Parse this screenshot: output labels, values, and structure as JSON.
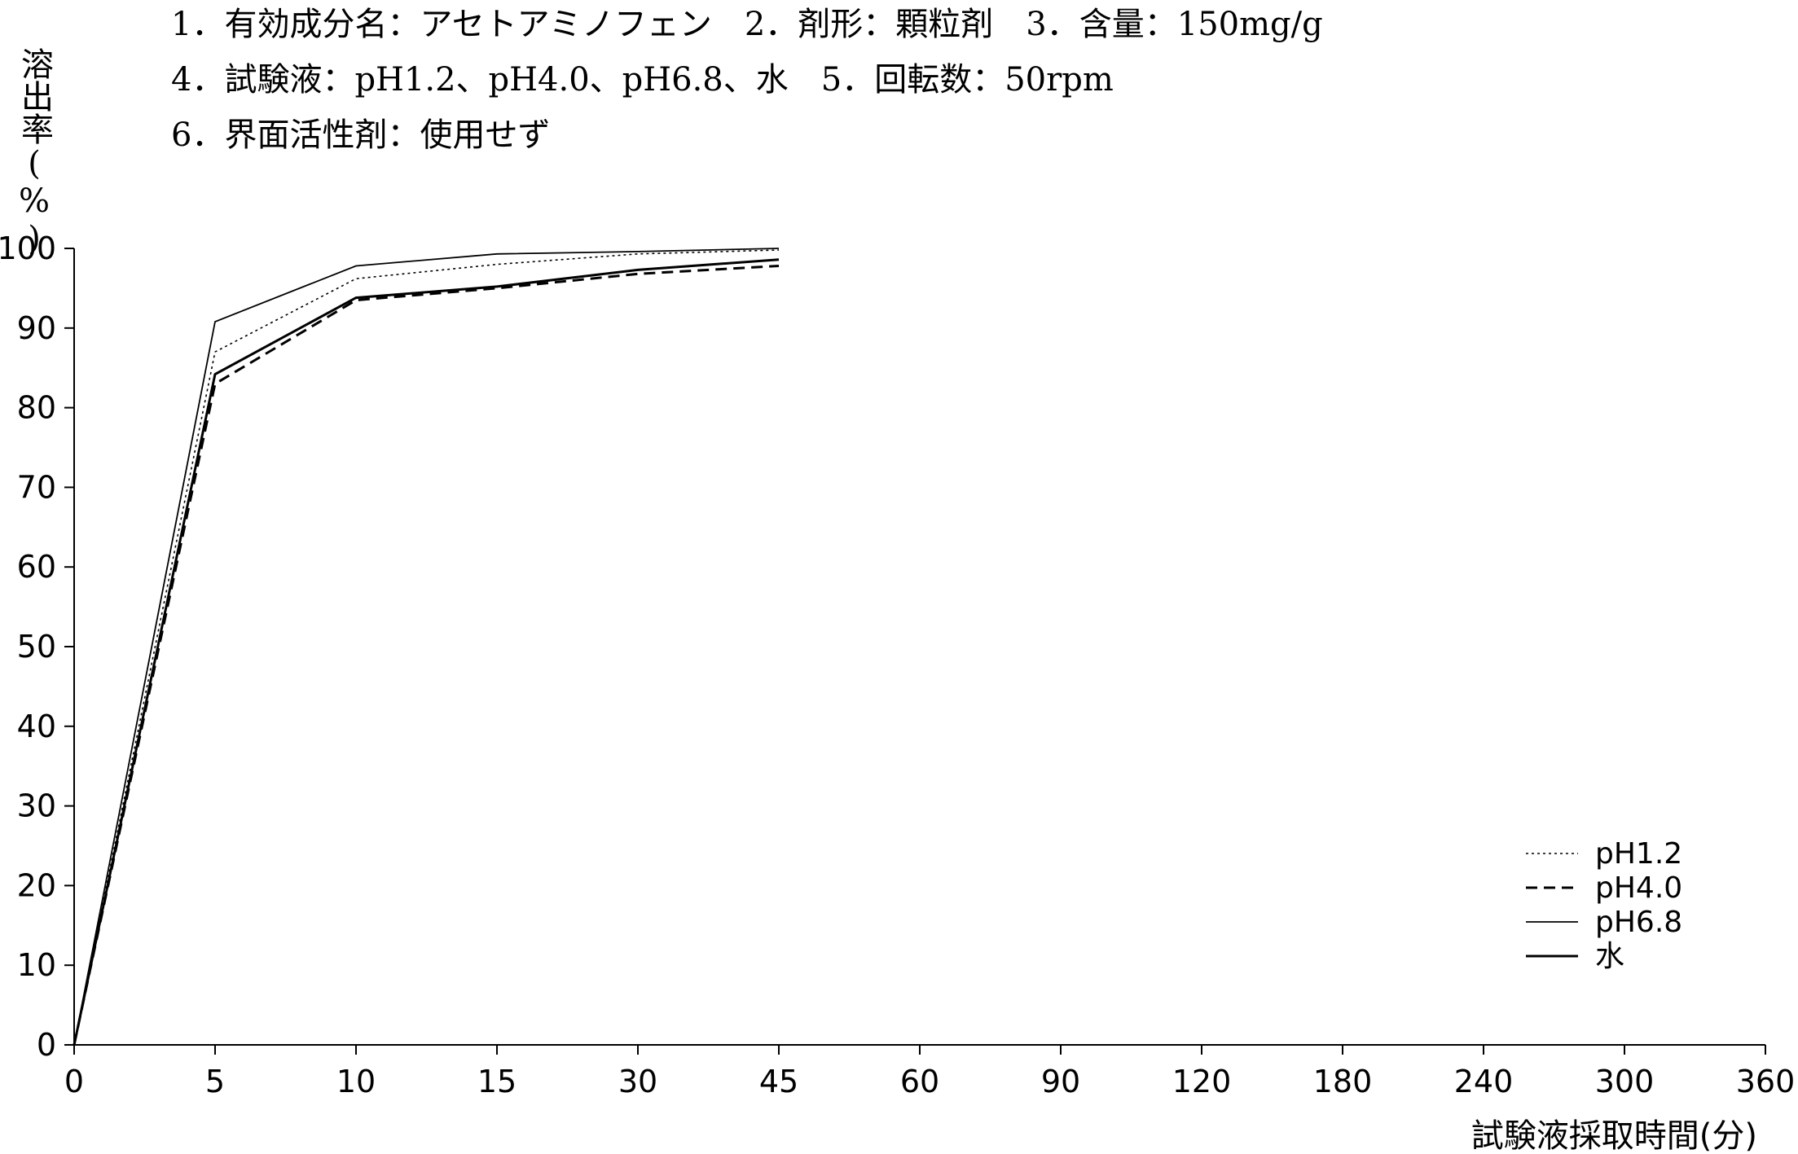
{
  "header": {
    "lines": [
      "1．有効成分名：アセトアミノフェン　2．剤形：顆粒剤　3．含量：150mg/g",
      "4．試験液：pH1.2、pH4.0、pH6.8、水　5．回転数：50rpm",
      "6．界面活性剤：使用せず"
    ]
  },
  "chart_data": {
    "type": "line",
    "title": "",
    "ylabel": "溶出率(%)",
    "xlabel": "試験液採取時間(分)",
    "categories": [
      "0",
      "5",
      "10",
      "15",
      "30",
      "45",
      "60",
      "90",
      "120",
      "180",
      "240",
      "300",
      "360"
    ],
    "y_ticks": [
      0,
      10,
      20,
      30,
      40,
      50,
      60,
      70,
      80,
      90,
      100
    ],
    "ylim": [
      0,
      100
    ],
    "grid": false,
    "legend_position": "bottom-right",
    "series": [
      {
        "name": "pH1.2",
        "style": "dotted",
        "x": [
          0,
          5,
          10,
          15,
          30,
          45
        ],
        "values": [
          0,
          87.0,
          96.2,
          98.0,
          99.3,
          99.8
        ]
      },
      {
        "name": "pH4.0",
        "style": "dashed",
        "x": [
          0,
          5,
          10,
          15,
          30,
          45
        ],
        "values": [
          0,
          83.0,
          93.5,
          95.0,
          96.8,
          97.8
        ]
      },
      {
        "name": "pH6.8",
        "style": "thin-solid",
        "x": [
          0,
          5,
          10,
          15,
          30,
          45
        ],
        "values": [
          0,
          90.8,
          97.8,
          99.3,
          99.6,
          100.0
        ]
      },
      {
        "name": "水",
        "style": "solid",
        "x": [
          0,
          5,
          10,
          15,
          30,
          45
        ],
        "values": [
          0,
          84.2,
          93.8,
          95.2,
          97.3,
          98.6
        ]
      }
    ],
    "colors": {
      "line": "#000000",
      "axis": "#000000",
      "background": "#ffffff"
    }
  }
}
